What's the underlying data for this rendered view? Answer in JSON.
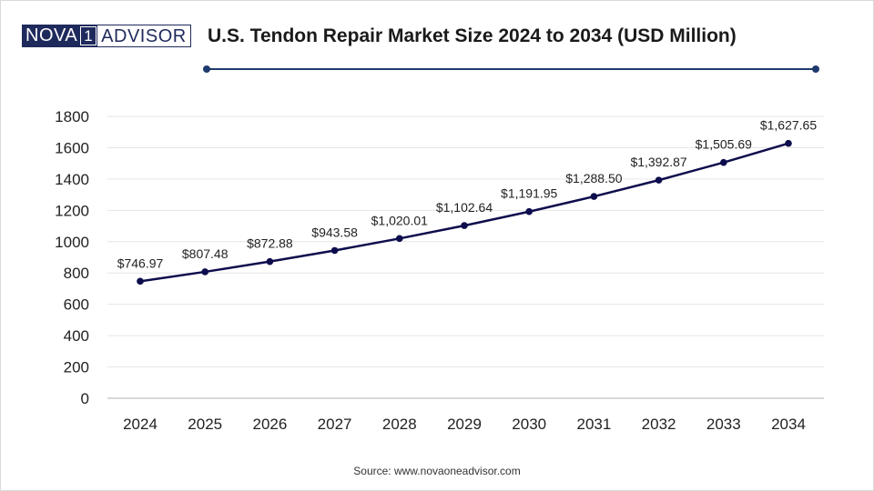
{
  "logo": {
    "left": "NOVA",
    "mid": "1",
    "right": "ADVISOR"
  },
  "title": "U.S. Tendon Repair Market Size 2024 to 2034 (USD Million)",
  "source": "Source: www.novaoneadvisor.com",
  "colors": {
    "line": "#0d0d4d",
    "header_rule": "#1f3a6e",
    "grid": "#e6e6e6",
    "axis": "#bfbfbf",
    "text": "#222222"
  },
  "chart_data": {
    "type": "line",
    "title": "U.S. Tendon Repair Market Size 2024 to 2034 (USD Million)",
    "xlabel": "",
    "ylabel": "",
    "categories": [
      "2024",
      "2025",
      "2026",
      "2027",
      "2028",
      "2029",
      "2030",
      "2031",
      "2032",
      "2033",
      "2034"
    ],
    "values": [
      746.97,
      807.48,
      872.88,
      943.58,
      1020.01,
      1102.64,
      1191.95,
      1288.5,
      1392.87,
      1505.69,
      1627.65
    ],
    "data_labels": [
      "$746.97",
      "$807.48",
      "$872.88",
      "$943.58",
      "$1,020.01",
      "$1,102.64",
      "$1,191.95",
      "$1,288.50",
      "$1,392.87",
      "$1,505.69",
      "$1,627.65"
    ],
    "ylim": [
      0,
      1800
    ],
    "yticks": [
      0,
      200,
      400,
      600,
      800,
      1000,
      1200,
      1400,
      1600,
      1800
    ],
    "grid": true,
    "legend": "none"
  }
}
